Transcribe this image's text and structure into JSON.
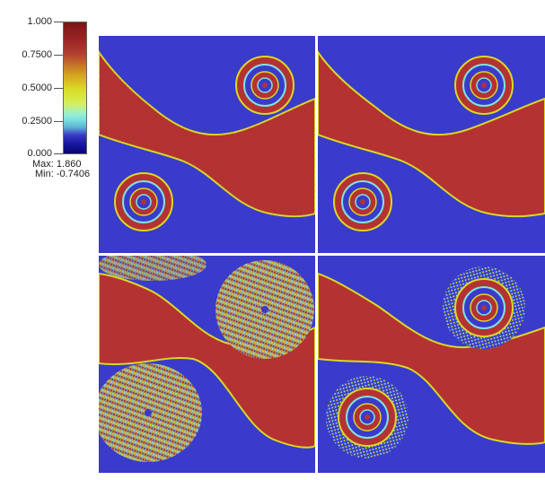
{
  "colorbar": {
    "ticks": [
      "1.000",
      "0.7500",
      "0.5000",
      "0.2500",
      "0.000"
    ],
    "max_label": "Max:",
    "max_value": "1.860",
    "min_label": "Min:",
    "min_value": "-0.7406"
  },
  "colors": {
    "background_blue": "#3636c8",
    "fluid_red": "#b43232",
    "edge_yellow": "#d9d825",
    "edge_cyan": "#7ee3e0"
  },
  "panels": [
    {
      "id": "top-left",
      "noise": "medium"
    },
    {
      "id": "top-right",
      "noise": "low"
    },
    {
      "id": "bottom-left",
      "noise": "high"
    },
    {
      "id": "bottom-right",
      "noise": "medium-high"
    }
  ]
}
